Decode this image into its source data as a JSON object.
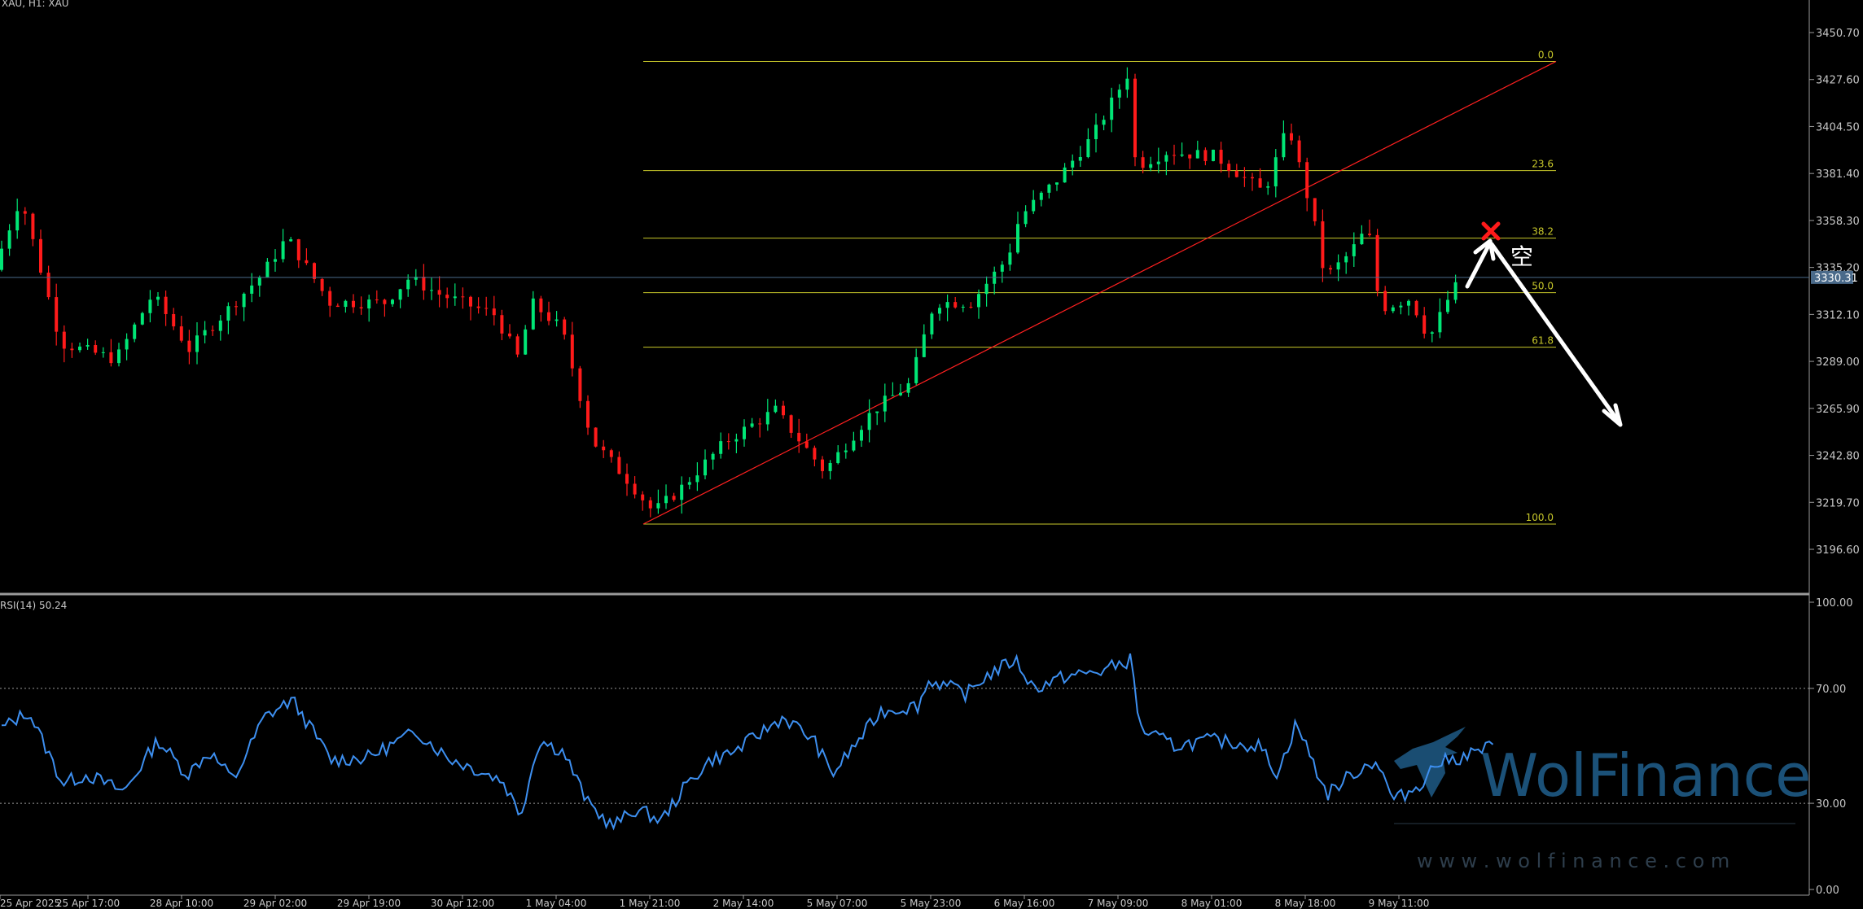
{
  "header": {
    "symbol_label": "XAU, H1:  XAU"
  },
  "indicator": {
    "label": "RSI(14) 50.24"
  },
  "colors": {
    "background": "#000000",
    "bull": "#00e676",
    "bear": "#ff1a1a",
    "fib": "#c8c82a",
    "trend": "#ff2020",
    "rsi": "#3d8ff0",
    "axis_text": "#c8c8c8",
    "current_price_line": "#4a6a8a",
    "arrow": "#ffffff",
    "watermark": "#1f5a86"
  },
  "annotation": {
    "short_mark": "空"
  },
  "watermark": {
    "brand": "WolFinance",
    "url": "w w w . w o l f i n a n c e . c o m"
  },
  "chart_data": [
    {
      "type": "candlestick",
      "ylim": [
        3185,
        3465
      ],
      "y_ticks": [
        "3450.70",
        "3427.60",
        "3404.50",
        "3381.40",
        "3358.30",
        "3335.20",
        "3312.10",
        "3289.00",
        "3265.90",
        "3242.80",
        "3219.70",
        "3196.60"
      ],
      "x_ticks": [
        "25 Apr 2025",
        "25 Apr 17:00",
        "28 Apr 10:00",
        "29 Apr 02:00",
        "29 Apr 19:00",
        "30 Apr 12:00",
        "1 May 04:00",
        "1 May 21:00",
        "2 May 14:00",
        "5 May 07:00",
        "5 May 23:00",
        "6 May 16:00",
        "7 May 09:00",
        "8 May 01:00",
        "8 May 18:00",
        "9 May 11:00"
      ],
      "current_price": "3330.31",
      "fib_levels": [
        {
          "label": "0.0",
          "price": 3436.5
        },
        {
          "label": "23.6",
          "price": 3382.8
        },
        {
          "label": "38.2",
          "price": 3349.6
        },
        {
          "label": "50.0",
          "price": 3322.8
        },
        {
          "label": "61.8",
          "price": 3296.0
        },
        {
          "label": "100.0",
          "price": 3209.0
        }
      ],
      "anchors": [
        {
          "x": 0,
          "price": 3334
        },
        {
          "x": 22,
          "price": 3370
        },
        {
          "x": 55,
          "price": 3298
        },
        {
          "x": 100,
          "price": 3290
        },
        {
          "x": 130,
          "price": 3322
        },
        {
          "x": 160,
          "price": 3295
        },
        {
          "x": 220,
          "price": 3332
        },
        {
          "x": 240,
          "price": 3350
        },
        {
          "x": 275,
          "price": 3318
        },
        {
          "x": 320,
          "price": 3318
        },
        {
          "x": 340,
          "price": 3330
        },
        {
          "x": 365,
          "price": 3322
        },
        {
          "x": 410,
          "price": 3312
        },
        {
          "x": 430,
          "price": 3290
        },
        {
          "x": 440,
          "price": 3318
        },
        {
          "x": 465,
          "price": 3305
        },
        {
          "x": 490,
          "price": 3250
        },
        {
          "x": 520,
          "price": 3230
        },
        {
          "x": 540,
          "price": 3215
        },
        {
          "x": 560,
          "price": 3225
        },
        {
          "x": 600,
          "price": 3250
        },
        {
          "x": 640,
          "price": 3265
        },
        {
          "x": 680,
          "price": 3235
        },
        {
          "x": 720,
          "price": 3265
        },
        {
          "x": 750,
          "price": 3278
        },
        {
          "x": 770,
          "price": 3318
        },
        {
          "x": 800,
          "price": 3318
        },
        {
          "x": 830,
          "price": 3340
        },
        {
          "x": 840,
          "price": 3360
        },
        {
          "x": 870,
          "price": 3378
        },
        {
          "x": 900,
          "price": 3400
        },
        {
          "x": 928,
          "price": 3430
        },
        {
          "x": 935,
          "price": 3385
        },
        {
          "x": 960,
          "price": 3392
        },
        {
          "x": 1000,
          "price": 3390
        },
        {
          "x": 1040,
          "price": 3372
        },
        {
          "x": 1060,
          "price": 3405
        },
        {
          "x": 1080,
          "price": 3360
        },
        {
          "x": 1090,
          "price": 3330
        },
        {
          "x": 1110,
          "price": 3342
        },
        {
          "x": 1125,
          "price": 3355
        },
        {
          "x": 1135,
          "price": 3315
        },
        {
          "x": 1160,
          "price": 3320
        },
        {
          "x": 1175,
          "price": 3300
        },
        {
          "x": 1195,
          "price": 3325
        },
        {
          "x": 1215,
          "price": 3330
        },
        {
          "x": 1221,
          "price": 3330
        }
      ]
    },
    {
      "type": "line",
      "name": "RSI(14)",
      "value": "50.24",
      "ylim": [
        0,
        100
      ],
      "y_ticks": [
        "100.00",
        "70.00",
        "30.00",
        "0.00"
      ],
      "levels": [
        70,
        30
      ],
      "points": [
        {
          "x": 0,
          "y": 56
        },
        {
          "x": 22,
          "y": 62
        },
        {
          "x": 50,
          "y": 37
        },
        {
          "x": 70,
          "y": 40
        },
        {
          "x": 100,
          "y": 34
        },
        {
          "x": 128,
          "y": 52
        },
        {
          "x": 152,
          "y": 40
        },
        {
          "x": 170,
          "y": 48
        },
        {
          "x": 190,
          "y": 38
        },
        {
          "x": 215,
          "y": 60
        },
        {
          "x": 238,
          "y": 66
        },
        {
          "x": 270,
          "y": 45
        },
        {
          "x": 300,
          "y": 46
        },
        {
          "x": 340,
          "y": 55
        },
        {
          "x": 365,
          "y": 46
        },
        {
          "x": 410,
          "y": 38
        },
        {
          "x": 425,
          "y": 26
        },
        {
          "x": 440,
          "y": 52
        },
        {
          "x": 460,
          "y": 48
        },
        {
          "x": 480,
          "y": 30
        },
        {
          "x": 500,
          "y": 22
        },
        {
          "x": 520,
          "y": 28
        },
        {
          "x": 540,
          "y": 24
        },
        {
          "x": 560,
          "y": 36
        },
        {
          "x": 580,
          "y": 45
        },
        {
          "x": 600,
          "y": 48
        },
        {
          "x": 640,
          "y": 60
        },
        {
          "x": 665,
          "y": 52
        },
        {
          "x": 680,
          "y": 40
        },
        {
          "x": 720,
          "y": 62
        },
        {
          "x": 750,
          "y": 64
        },
        {
          "x": 760,
          "y": 73
        },
        {
          "x": 790,
          "y": 68
        },
        {
          "x": 805,
          "y": 74
        },
        {
          "x": 830,
          "y": 80
        },
        {
          "x": 845,
          "y": 70
        },
        {
          "x": 870,
          "y": 74
        },
        {
          "x": 900,
          "y": 76
        },
        {
          "x": 925,
          "y": 80
        },
        {
          "x": 932,
          "y": 56
        },
        {
          "x": 960,
          "y": 50
        },
        {
          "x": 990,
          "y": 52
        },
        {
          "x": 1030,
          "y": 50
        },
        {
          "x": 1045,
          "y": 40
        },
        {
          "x": 1060,
          "y": 58
        },
        {
          "x": 1085,
          "y": 33
        },
        {
          "x": 1105,
          "y": 40
        },
        {
          "x": 1125,
          "y": 45
        },
        {
          "x": 1140,
          "y": 31
        },
        {
          "x": 1160,
          "y": 36
        },
        {
          "x": 1175,
          "y": 44
        },
        {
          "x": 1195,
          "y": 46
        },
        {
          "x": 1221,
          "y": 50
        }
      ]
    }
  ]
}
